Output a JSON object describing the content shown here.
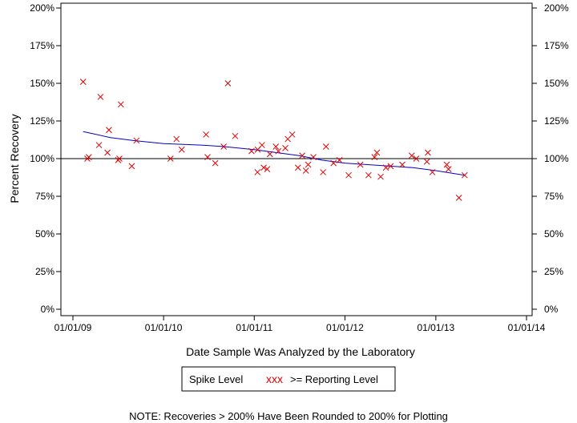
{
  "chart_data": {
    "type": "scatter",
    "xlabel": "Date Sample Was Analyzed by the Laboratory",
    "ylabel": "Percent Recovery",
    "x_ticks": [
      "01/01/09",
      "01/01/10",
      "01/01/11",
      "01/01/12",
      "01/01/13",
      "01/01/14"
    ],
    "x_range": [
      "2009-01-01",
      "2014-01-01"
    ],
    "y_ticks": [
      "0%",
      "25%",
      "50%",
      "75%",
      "100%",
      "125%",
      "150%",
      "175%",
      "200%"
    ],
    "y_range": [
      0,
      200
    ],
    "reference_line": 100,
    "legend": {
      "box_label": "Spike Level",
      "series_label": ">= Reporting Level",
      "marker_glyph": "xxx"
    },
    "note": "NOTE: Recoveries > 200% Have Been Rounded to 200% for Plotting",
    "colors": {
      "points": "#e00000",
      "trend": "#0000cc",
      "axes": "#000000"
    },
    "series": [
      {
        "type": "scatter",
        "points": [
          [
            "2009-02-11",
            151
          ],
          [
            "2009-02-28",
            100
          ],
          [
            "2009-03-06",
            101
          ],
          [
            "2009-04-16",
            109
          ],
          [
            "2009-04-22",
            141
          ],
          [
            "2009-05-20",
            104
          ],
          [
            "2009-05-26",
            119
          ],
          [
            "2009-07-02",
            99
          ],
          [
            "2009-07-07",
            100
          ],
          [
            "2009-07-13",
            136
          ],
          [
            "2009-08-26",
            95
          ],
          [
            "2009-09-14",
            112
          ],
          [
            "2010-01-29",
            100
          ],
          [
            "2010-02-22",
            113
          ],
          [
            "2010-03-15",
            106
          ],
          [
            "2010-06-21",
            116
          ],
          [
            "2010-06-27",
            101
          ],
          [
            "2010-07-28",
            97
          ],
          [
            "2010-08-31",
            108
          ],
          [
            "2010-09-17",
            150
          ],
          [
            "2010-10-16",
            115
          ],
          [
            "2010-12-21",
            105
          ],
          [
            "2011-01-14",
            91
          ],
          [
            "2011-01-15",
            106
          ],
          [
            "2011-02-01",
            109
          ],
          [
            "2011-02-08",
            94
          ],
          [
            "2011-02-22",
            93
          ],
          [
            "2011-03-05",
            103
          ],
          [
            "2011-03-29",
            108
          ],
          [
            "2011-04-08",
            105
          ],
          [
            "2011-05-06",
            107
          ],
          [
            "2011-05-16",
            113
          ],
          [
            "2011-06-03",
            116
          ],
          [
            "2011-06-26",
            94
          ],
          [
            "2011-07-13",
            102
          ],
          [
            "2011-07-28",
            92
          ],
          [
            "2011-08-06",
            96
          ],
          [
            "2011-08-27",
            101
          ],
          [
            "2011-10-05",
            91
          ],
          [
            "2011-10-17",
            108
          ],
          [
            "2011-11-16",
            97
          ],
          [
            "2011-12-10",
            99
          ],
          [
            "2012-01-16",
            89
          ],
          [
            "2012-03-03",
            96
          ],
          [
            "2012-04-05",
            89
          ],
          [
            "2012-04-29",
            101
          ],
          [
            "2012-05-09",
            104
          ],
          [
            "2012-05-24",
            88
          ],
          [
            "2012-06-14",
            94
          ],
          [
            "2012-07-03",
            95
          ],
          [
            "2012-08-19",
            96
          ],
          [
            "2012-09-26",
            102
          ],
          [
            "2012-10-14",
            100
          ],
          [
            "2012-11-26",
            98
          ],
          [
            "2012-11-30",
            104
          ],
          [
            "2012-12-18",
            91
          ],
          [
            "2013-02-14",
            96
          ],
          [
            "2013-02-21",
            93
          ],
          [
            "2013-04-04",
            74
          ],
          [
            "2013-04-27",
            89
          ]
        ]
      },
      {
        "type": "line",
        "points": [
          [
            "2009-02-11",
            118
          ],
          [
            "2009-06-01",
            114
          ],
          [
            "2009-09-01",
            112
          ],
          [
            "2010-01-01",
            110
          ],
          [
            "2010-06-01",
            109
          ],
          [
            "2010-09-01",
            108
          ],
          [
            "2011-01-01",
            106
          ],
          [
            "2011-04-01",
            104
          ],
          [
            "2011-07-01",
            102
          ],
          [
            "2011-10-01",
            99
          ],
          [
            "2012-01-01",
            97
          ],
          [
            "2012-04-01",
            96
          ],
          [
            "2012-07-01",
            95
          ],
          [
            "2012-10-01",
            94
          ],
          [
            "2013-01-01",
            92
          ],
          [
            "2013-04-27",
            89
          ]
        ]
      }
    ]
  }
}
